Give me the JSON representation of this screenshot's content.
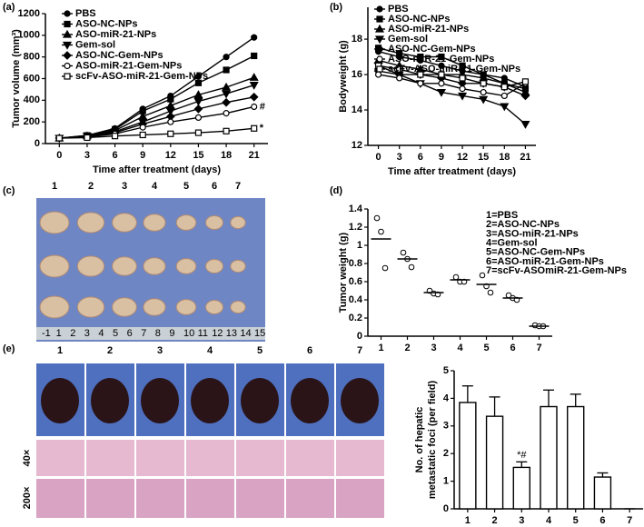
{
  "chart_data": [
    {
      "type": "line",
      "panel": "(a)",
      "ylabel": "Tumor volume (mm³)",
      "xlabel": "Time after treatment (days)",
      "x": [
        0,
        3,
        6,
        9,
        12,
        15,
        18,
        21
      ],
      "xlim": [
        -1.5,
        22.5
      ],
      "xticks": [
        0,
        3,
        6,
        9,
        12,
        15,
        18,
        21
      ],
      "ylim": [
        0,
        1200
      ],
      "yticks": [
        0,
        200,
        400,
        600,
        800,
        1000,
        1200
      ],
      "series": [
        {
          "name": "PBS",
          "marker": "circle",
          "values": [
            50,
            75,
            140,
            320,
            440,
            620,
            800,
            980
          ]
        },
        {
          "name": "ASO-NC-NPs",
          "marker": "square",
          "values": [
            50,
            75,
            130,
            300,
            410,
            560,
            680,
            810
          ]
        },
        {
          "name": "ASO-miR-21-NPs",
          "marker": "triangle",
          "values": [
            50,
            70,
            120,
            250,
            350,
            450,
            520,
            610
          ]
        },
        {
          "name": "Gem-sol",
          "marker": "triangle-down",
          "values": [
            50,
            70,
            110,
            200,
            300,
            390,
            460,
            540
          ]
        },
        {
          "name": "ASO-NC-Gem-NPs",
          "marker": "diamond",
          "values": [
            50,
            65,
            100,
            180,
            250,
            320,
            380,
            430
          ]
        },
        {
          "name": "ASO-miR-21-Gem-NPs",
          "marker": "circle-open",
          "values": [
            50,
            60,
            90,
            150,
            200,
            240,
            280,
            340
          ]
        },
        {
          "name": "scFv-ASO-miR-21-Gem-NPs",
          "marker": "square-open",
          "values": [
            50,
            55,
            70,
            80,
            90,
            100,
            115,
            140
          ]
        }
      ],
      "annotations": [
        {
          "text": "#",
          "series": 5
        },
        {
          "text": "*",
          "series": 6
        }
      ]
    },
    {
      "type": "line",
      "panel": "(b)",
      "ylabel": "Bodyweight (g)",
      "xlabel": "Time after treatment (days)",
      "x": [
        0,
        3,
        6,
        9,
        12,
        15,
        18,
        21
      ],
      "xlim": [
        -1.5,
        22.5
      ],
      "xticks": [
        0,
        3,
        6,
        9,
        12,
        15,
        18,
        21
      ],
      "ylim": [
        12,
        19.8
      ],
      "yticks": [
        12,
        14,
        16,
        18
      ],
      "series": [
        {
          "name": "PBS",
          "marker": "circle",
          "values": [
            17.3,
            17.0,
            16.8,
            16.5,
            16.2,
            16.0,
            15.8,
            15.3
          ]
        },
        {
          "name": "ASO-NC-NPs",
          "marker": "square",
          "values": [
            17.5,
            17.2,
            17.0,
            17.0,
            16.5,
            16.0,
            15.5,
            15.2
          ]
        },
        {
          "name": "ASO-miR-21-NPs",
          "marker": "triangle",
          "values": [
            16.8,
            16.5,
            16.3,
            16.0,
            16.0,
            15.8,
            15.5,
            15.0
          ]
        },
        {
          "name": "Gem-sol",
          "marker": "triangle-down",
          "values": [
            16.5,
            16.0,
            15.5,
            15.0,
            14.8,
            14.6,
            14.2,
            13.2
          ]
        },
        {
          "name": "ASO-NC-Gem-NPs",
          "marker": "diamond",
          "values": [
            16.2,
            16.0,
            16.0,
            15.8,
            15.5,
            15.5,
            15.3,
            14.8
          ]
        },
        {
          "name": "ASO-miR-21-Gem-NPs",
          "marker": "circle-open",
          "values": [
            16.0,
            15.8,
            15.5,
            15.5,
            15.2,
            15.0,
            14.8,
            15.5
          ]
        },
        {
          "name": "scFv-ASO-miR-21-Gem-NPs",
          "marker": "square-open",
          "values": [
            16.5,
            16.3,
            16.0,
            16.0,
            15.8,
            15.5,
            15.3,
            15.6
          ]
        }
      ]
    },
    {
      "type": "dot",
      "panel": "(d)",
      "ylabel": "Tumor weight (g)",
      "categories": [
        "1",
        "2",
        "3",
        "4",
        "5",
        "6",
        "7"
      ],
      "xlim": [
        0.5,
        7.5
      ],
      "ylim": [
        0,
        1.4
      ],
      "yticks": [
        0,
        0.2,
        0.4,
        0.6,
        0.8,
        1,
        1.2,
        1.4
      ],
      "points": [
        [
          1.3,
          1.15,
          0.75
        ],
        [
          0.92,
          0.85,
          0.76
        ],
        [
          0.5,
          0.47,
          0.46
        ],
        [
          0.65,
          0.6,
          0.6
        ],
        [
          0.67,
          0.55,
          0.48
        ],
        [
          0.45,
          0.42,
          0.4
        ],
        [
          0.12,
          0.11,
          0.11
        ]
      ],
      "means": [
        1.07,
        0.85,
        0.48,
        0.62,
        0.57,
        0.42,
        0.11
      ],
      "legend": [
        "1=PBS",
        "2=ASO-NC-NPs",
        "3=ASO-miR-21-NPs",
        "4=Gem-sol",
        "5=ASO-NC-Gem-NPs",
        "6=ASO-miR-21-Gem-NPs",
        "7=scFv-ASOmiR-21-Gem-NPs"
      ]
    },
    {
      "type": "bar",
      "ylabel": [
        "No. of hepatic",
        "metastatic foci (per field)"
      ],
      "categories": [
        "1",
        "2",
        "3",
        "4",
        "5",
        "6",
        "7"
      ],
      "xlim": [
        0.5,
        7.5
      ],
      "ylim": [
        0,
        5
      ],
      "yticks": [
        0,
        1,
        2,
        3,
        4,
        5
      ],
      "values": [
        3.85,
        3.35,
        1.5,
        3.7,
        3.7,
        1.15,
        0
      ],
      "errors": [
        0.6,
        0.7,
        0.2,
        0.6,
        0.45,
        0.15,
        0
      ],
      "annotations": [
        {
          "text": "*#",
          "index": 2
        }
      ]
    }
  ],
  "photo_c": {
    "panel": "(c)",
    "labels": [
      "1",
      "2",
      "3",
      "4",
      "5",
      "6",
      "7"
    ],
    "ruler": [
      "-1",
      "1",
      "2",
      "3",
      "4",
      "5",
      "6",
      "7",
      "8",
      "9",
      "10",
      "11",
      "12",
      "13",
      "14",
      "15"
    ]
  },
  "photo_e": {
    "panel": "(e)",
    "labels": [
      "1",
      "2",
      "3",
      "4",
      "5",
      "6",
      "7"
    ],
    "rows": [
      "40×",
      "200×"
    ]
  }
}
